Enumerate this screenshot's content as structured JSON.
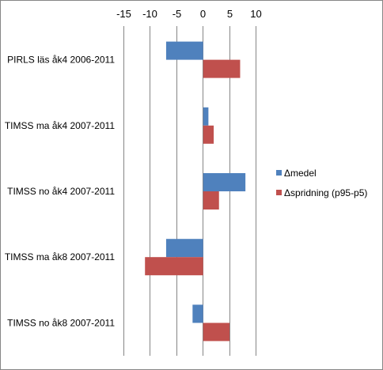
{
  "chart_data": {
    "type": "bar",
    "orientation": "horizontal",
    "categories": [
      "PIRLS läs åk4 2006-2011",
      "TIMSS ma åk4 2007-2011",
      "TIMSS no åk4 2007-2011",
      "TIMSS ma åk8 2007-2011",
      "TIMSS no åk8 2007-2011"
    ],
    "series": [
      {
        "name": "Δmedel",
        "color": "#4F81BD",
        "values": [
          -7,
          1,
          8,
          -7,
          -2
        ]
      },
      {
        "name": "Δspridning (p95-p5)",
        "color": "#C0504D",
        "values": [
          7,
          2,
          3,
          -11,
          5
        ]
      }
    ],
    "xticks": [
      -15,
      -10,
      -5,
      0,
      5,
      10
    ],
    "xlim": [
      -15,
      10
    ],
    "grid": true,
    "gridline_color": "#868686",
    "legend_position": "right",
    "title": "",
    "xlabel": "",
    "ylabel": ""
  }
}
